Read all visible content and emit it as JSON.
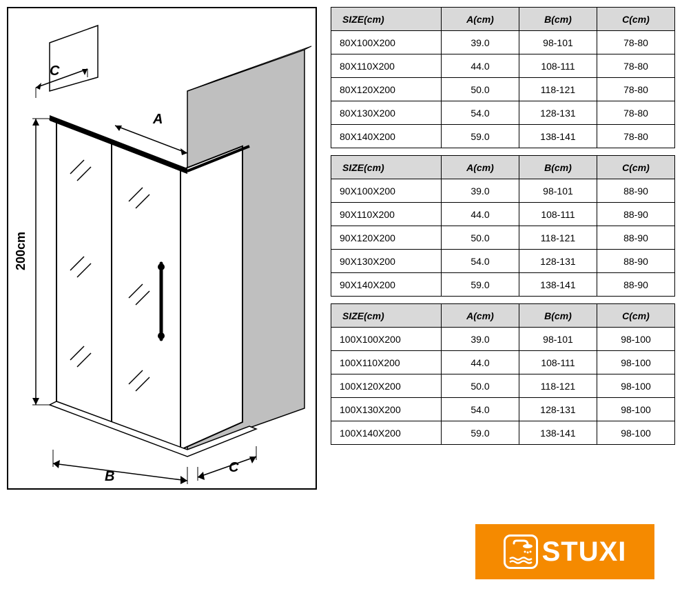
{
  "diagram": {
    "height_label": "200cm",
    "dim_a": "A",
    "dim_b": "B",
    "dim_c_top": "C",
    "dim_c_bottom": "C",
    "border_color": "#000000",
    "wall_fill": "#bfbfbf",
    "glass_stroke": "#000000"
  },
  "tables": {
    "headers": {
      "size": "SIZE(cm)",
      "a": "A(cm)",
      "b": "B(cm)",
      "c": "C(cm)"
    },
    "header_bg": "#d9d9d9",
    "border_color": "#000000",
    "font_size": 14,
    "groups": [
      {
        "rows": [
          {
            "size": "80X100X200",
            "a": "39.0",
            "b": "98-101",
            "c": "78-80"
          },
          {
            "size": "80X110X200",
            "a": "44.0",
            "b": "108-111",
            "c": "78-80"
          },
          {
            "size": "80X120X200",
            "a": "50.0",
            "b": "118-121",
            "c": "78-80"
          },
          {
            "size": "80X130X200",
            "a": "54.0",
            "b": "128-131",
            "c": "78-80"
          },
          {
            "size": "80X140X200",
            "a": "59.0",
            "b": "138-141",
            "c": "78-80"
          }
        ]
      },
      {
        "rows": [
          {
            "size": "90X100X200",
            "a": "39.0",
            "b": "98-101",
            "c": "88-90"
          },
          {
            "size": "90X110X200",
            "a": "44.0",
            "b": "108-111",
            "c": "88-90"
          },
          {
            "size": "90X120X200",
            "a": "50.0",
            "b": "118-121",
            "c": "88-90"
          },
          {
            "size": "90X130X200",
            "a": "54.0",
            "b": "128-131",
            "c": "88-90"
          },
          {
            "size": "90X140X200",
            "a": "59.0",
            "b": "138-141",
            "c": "88-90"
          }
        ]
      },
      {
        "rows": [
          {
            "size": "100X100X200",
            "a": "39.0",
            "b": "98-101",
            "c": "98-100"
          },
          {
            "size": "100X110X200",
            "a": "44.0",
            "b": "108-111",
            "c": "98-100"
          },
          {
            "size": "100X120X200",
            "a": "50.0",
            "b": "118-121",
            "c": "98-100"
          },
          {
            "size": "100X130X200",
            "a": "54.0",
            "b": "128-131",
            "c": "98-100"
          },
          {
            "size": "100X140X200",
            "a": "59.0",
            "b": "138-141",
            "c": "98-100"
          }
        ]
      }
    ]
  },
  "logo": {
    "text": "STUXI",
    "bg_color": "#f58a00",
    "fg_color": "#ffffff"
  }
}
